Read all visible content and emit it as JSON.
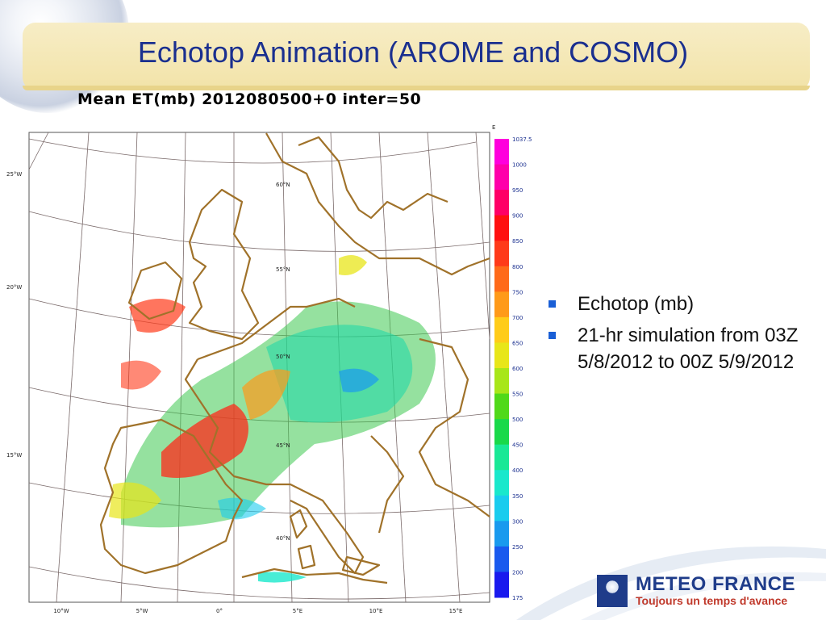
{
  "slide": {
    "title": "Echotop Animation (AROME and COSMO)"
  },
  "map": {
    "title": "Mean ET(mb) 2012080500+0 inter=50",
    "lat_labels": [
      "60°N",
      "55°N",
      "50°N",
      "45°N",
      "40°N"
    ],
    "left_labels": [
      "25°W",
      "20°W",
      "15°W"
    ],
    "bottom_labels": [
      "10°W",
      "5°W",
      "0°",
      "5°E",
      "10°E",
      "15°E"
    ],
    "corner_label": "E"
  },
  "colorbar": {
    "labels": [
      "1037.5",
      "1000",
      "950",
      "900",
      "850",
      "800",
      "750",
      "700",
      "650",
      "600",
      "550",
      "500",
      "450",
      "400",
      "350",
      "300",
      "250",
      "200",
      "175"
    ],
    "colors": [
      "#ff00dd",
      "#ff00aa",
      "#ff0066",
      "#ff1010",
      "#ff3a1a",
      "#ff6a1a",
      "#ff9a1a",
      "#ffcc1a",
      "#e8e61a",
      "#a8e61a",
      "#50d91a",
      "#1ad94a",
      "#1ae896",
      "#1ae8cc",
      "#1accee",
      "#1a9aee",
      "#1a5aee",
      "#1a1aee"
    ]
  },
  "bullets": [
    "Echotop (mb)",
    "21-hr simulation from 03Z 5/8/2012 to 00Z 5/9/2012"
  ],
  "logo": {
    "name": "METEO FRANCE",
    "tagline": "Toujours un temps d'avance"
  }
}
